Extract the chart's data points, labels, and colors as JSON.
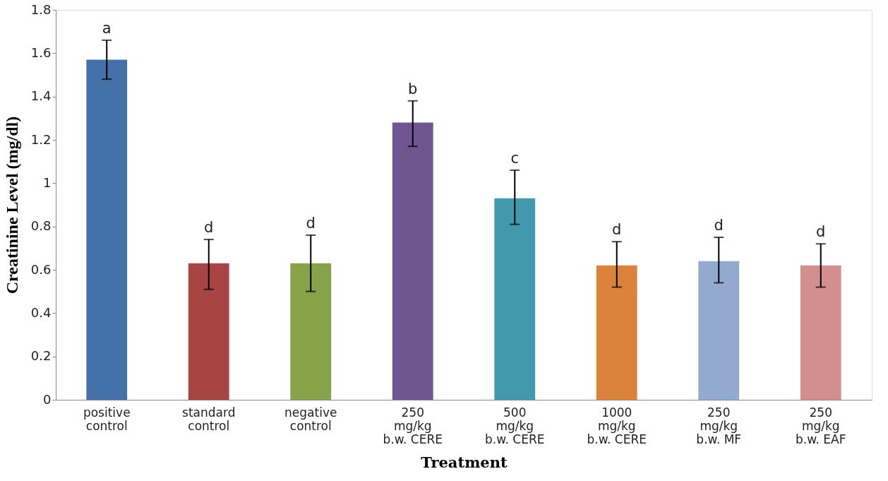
{
  "chart_data": {
    "type": "bar",
    "xlabel": "Treatment",
    "ylabel": "Creatinine Level (mg/dl)",
    "categories": [
      "positive control",
      "standard control",
      "negative control",
      "250 mg/kg b.w. CERE",
      "500 mg/kg b.w. CERE",
      "1000 mg/kg b.w. CERE",
      "250 mg/kg b.w. MF",
      "250 mg/kg b.w. EAF"
    ],
    "values": [
      1.57,
      0.63,
      0.63,
      1.28,
      0.93,
      0.62,
      0.64,
      0.62
    ],
    "errors": [
      [
        1.48,
        1.66
      ],
      [
        0.51,
        0.74
      ],
      [
        0.5,
        0.76
      ],
      [
        1.17,
        1.38
      ],
      [
        0.81,
        1.06
      ],
      [
        0.52,
        0.73
      ],
      [
        0.54,
        0.75
      ],
      [
        0.52,
        0.72
      ]
    ],
    "colors": [
      "#4472a8",
      "#a84442",
      "#86a34a",
      "#6f5690",
      "#4299ae",
      "#dc823a",
      "#93a9d0",
      "#d38f8e"
    ],
    "ylim": [
      0,
      1.8
    ],
    "yticks": [
      0,
      0.2,
      0.4,
      0.6,
      0.8,
      1,
      1.2,
      1.4,
      1.6,
      1.8
    ],
    "annotations": [
      "a",
      "d",
      "d",
      "b",
      "c",
      "d",
      "d",
      "d"
    ],
    "grid": false
  }
}
